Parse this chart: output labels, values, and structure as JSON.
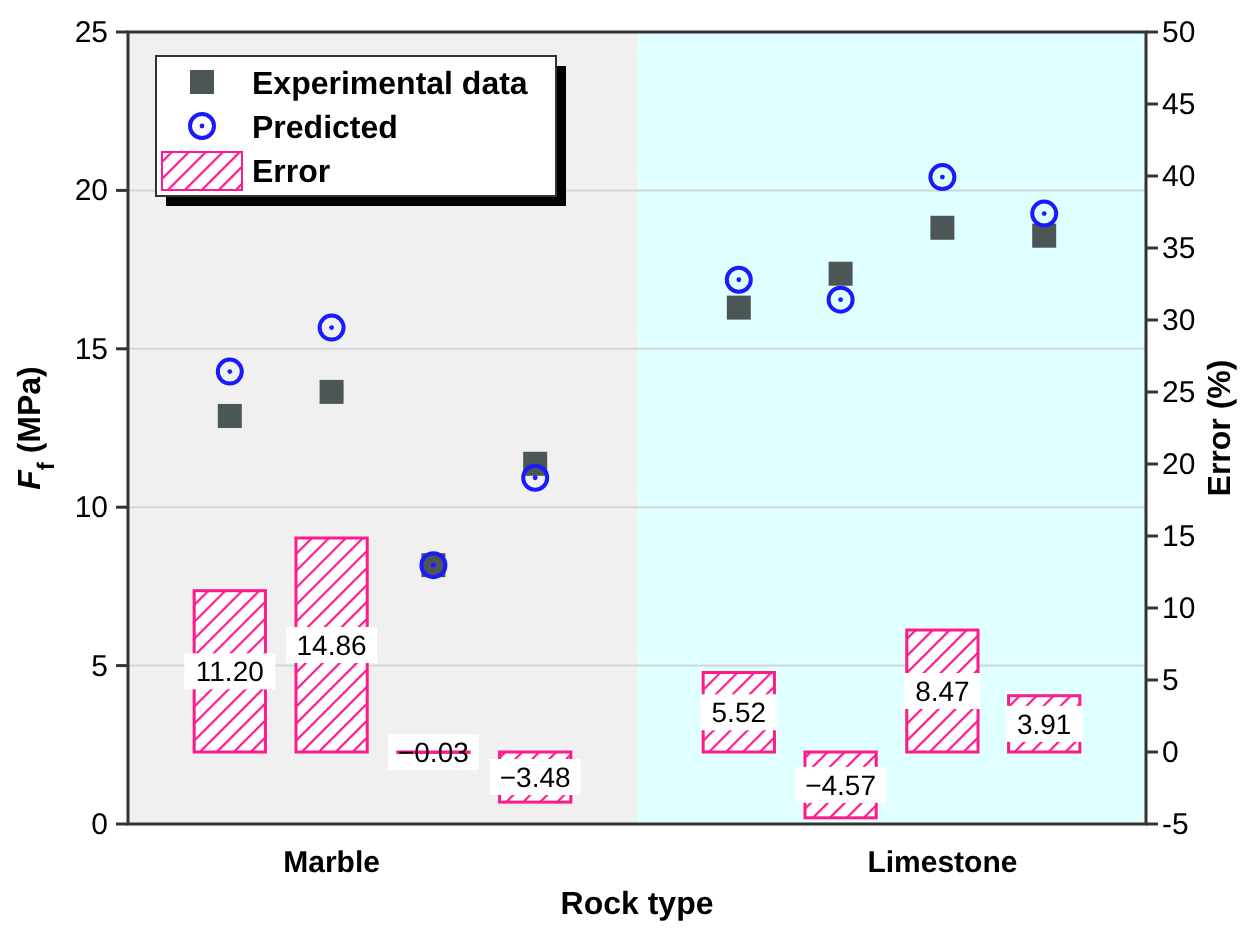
{
  "chart_data": {
    "type": "scatter",
    "xlabel": "Rock type",
    "ylabel": "F$_{f}$ (MPa)",
    "y2label": "Error (%)",
    "categories": [
      null,
      "Marble",
      null,
      null,
      null,
      null,
      null,
      "Limestone",
      null
    ],
    "ylim": [
      0,
      25
    ],
    "yticks": [
      0,
      5,
      10,
      15,
      20,
      25
    ],
    "y2lim": [
      -5,
      50
    ],
    "y2ticks": [
      -5,
      0,
      5,
      10,
      15,
      20,
      25,
      30,
      35,
      40,
      45,
      50
    ],
    "grid": "y",
    "legend": "top left",
    "series": [
      {
        "name": "Experimental data",
        "marker": "square",
        "color": "#4d5656",
        "values": [
          12.88,
          13.64,
          8.17,
          11.37,
          null,
          16.3,
          17.37,
          18.82,
          18.57
        ]
      },
      {
        "name": "Predicted",
        "marker": "circle",
        "color": "#1a1aff",
        "values": [
          14.28,
          15.67,
          8.17,
          10.93,
          null,
          17.18,
          16.55,
          20.42,
          19.27
        ]
      },
      {
        "name": "Error",
        "type": "bar",
        "axis": "y2",
        "color": "#ff1a8c",
        "values": [
          11.2,
          14.86,
          -0.03,
          -3.48,
          null,
          5.52,
          -4.57,
          8.47,
          3.91
        ],
        "value_labels": [
          "11.20",
          "14.86",
          "−0.03",
          "−3.48",
          null,
          "5.52",
          "−4.57",
          "8.47",
          "3.91"
        ]
      }
    ]
  }
}
